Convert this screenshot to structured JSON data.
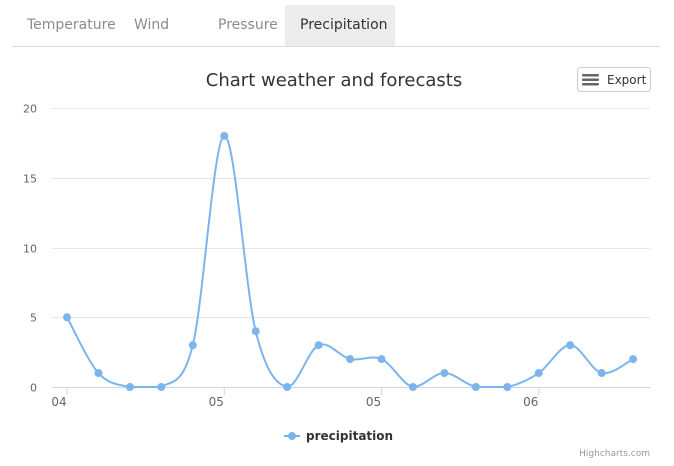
{
  "tabs": [
    {
      "label": "Temperature",
      "active": false
    },
    {
      "label": "Wind",
      "active": false
    },
    {
      "label": "Pressure",
      "active": false
    },
    {
      "label": "Precipitation",
      "active": true
    }
  ],
  "export": {
    "label": "Export",
    "icon": "hamburger-menu-icon"
  },
  "credits": "Highcharts.com",
  "colors": {
    "series": "#7cb5ec",
    "grid": "#e6e6e6",
    "axis_text": "#666666"
  },
  "chart_data": {
    "type": "line",
    "title": "Chart weather and forecasts",
    "xlabel": "",
    "ylabel": "",
    "ylim": [
      0,
      20
    ],
    "yticks": [
      0,
      5,
      10,
      15,
      20
    ],
    "xticks": [
      {
        "label": "04",
        "index": 0
      },
      {
        "label": "05",
        "index": 5
      },
      {
        "label": "05",
        "index": 10
      },
      {
        "label": "06",
        "index": 15
      }
    ],
    "grid": true,
    "legend": "bottom-center",
    "series": [
      {
        "name": "precipitation",
        "values": [
          5,
          1,
          0,
          0,
          3,
          18,
          4,
          0,
          3,
          2,
          2,
          0,
          1,
          0,
          0,
          1,
          3,
          1,
          2
        ]
      }
    ]
  }
}
